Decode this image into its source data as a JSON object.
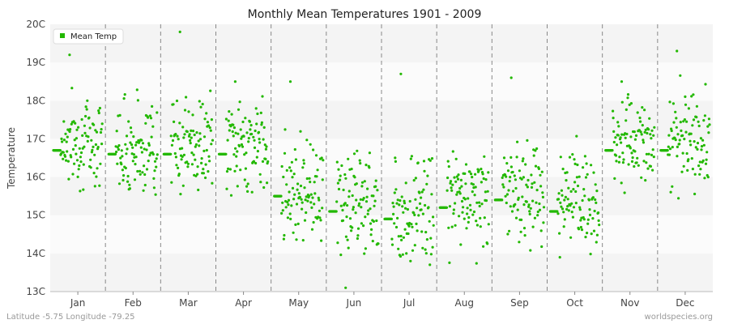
{
  "chart_data": {
    "type": "scatter",
    "title": "Monthly Mean Temperatures 1901 - 2009",
    "ylabel": "Temperature",
    "categories": [
      "Jan",
      "Feb",
      "Mar",
      "Apr",
      "May",
      "Jun",
      "Jul",
      "Aug",
      "Sep",
      "Oct",
      "Nov",
      "Dec"
    ],
    "y_ticks": [
      "13C",
      "14C",
      "15C",
      "16C",
      "17C",
      "18C",
      "19C",
      "20C"
    ],
    "ylim": [
      13,
      20
    ],
    "grid": true,
    "legend": {
      "position": "top-left",
      "label": "Mean Temp"
    },
    "series_color": "#22b800",
    "series": [
      {
        "name": "Mean Temp",
        "monthly_mean": [
          16.7,
          16.6,
          16.6,
          16.6,
          15.5,
          15.1,
          14.9,
          15.2,
          15.4,
          15.1,
          16.7,
          16.7
        ],
        "monthly_spread": [
          0.55,
          0.6,
          0.6,
          0.55,
          0.65,
          0.65,
          0.75,
          0.65,
          0.65,
          0.65,
          0.5,
          0.6
        ],
        "points_per_month": 109,
        "outliers": [
          {
            "month": "Jan",
            "value": 19.2
          },
          {
            "month": "Mar",
            "value": 19.8
          },
          {
            "month": "Apr",
            "value": 18.5
          },
          {
            "month": "May",
            "value": 18.5
          },
          {
            "month": "Jun",
            "value": 13.1
          },
          {
            "month": "Jul",
            "value": 18.7
          },
          {
            "month": "Sep",
            "value": 18.6
          },
          {
            "month": "Nov",
            "value": 18.5
          },
          {
            "month": "Dec",
            "value": 19.3
          }
        ]
      }
    ]
  },
  "footer": {
    "location": "Latitude -5.75 Longitude -79.25",
    "site": "worldspecies.org"
  }
}
